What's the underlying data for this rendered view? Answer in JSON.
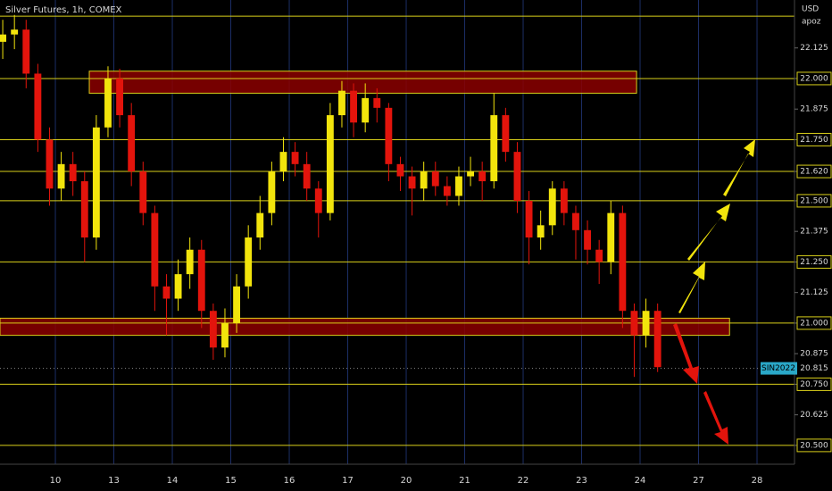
{
  "chart_data": {
    "type": "candlestick",
    "title": "Silver Futures, 1h, COMEX",
    "currency": "USD",
    "author": "apoz",
    "symbol": "SIN2022",
    "last_price": 20.815,
    "last_price_label": "20.815",
    "up_color": "#f2e40c",
    "down_color": "#e3140c",
    "level_color": "#d9cf1a",
    "zone_color": "#8b0000",
    "xlim": [
      -0.947,
      12.641
    ],
    "xticks": [
      {
        "value": 0,
        "label": "10"
      },
      {
        "value": 1,
        "label": "13"
      },
      {
        "value": 2,
        "label": "14"
      },
      {
        "value": 3,
        "label": "15"
      },
      {
        "value": 4,
        "label": "16"
      },
      {
        "value": 5,
        "label": "17"
      },
      {
        "value": 6,
        "label": "20"
      },
      {
        "value": 7,
        "label": "21"
      },
      {
        "value": 8,
        "label": "22"
      },
      {
        "value": 9,
        "label": "23"
      },
      {
        "value": 10,
        "label": "24"
      },
      {
        "value": 11,
        "label": "27"
      },
      {
        "value": 12,
        "label": "28"
      }
    ],
    "ylim": [
      20.423,
      22.321
    ],
    "yticks": [
      22.125,
      {
        "value": 22,
        "label": "22.000"
      },
      21.875,
      {
        "value": 21.75,
        "label": "21.750"
      },
      {
        "value": 21.62,
        "label": "21.620"
      },
      {
        "value": 21.5,
        "label": "21.500"
      },
      21.375,
      {
        "value": 21.25,
        "label": "21.250"
      },
      21.125,
      {
        "value": 21,
        "label": "21.000"
      },
      20.875,
      {
        "value": 20.75,
        "label": "20.750"
      },
      20.625,
      {
        "value": 20.5,
        "label": "20.500"
      }
    ],
    "levels": [
      22.255,
      22,
      21.75,
      21.62,
      21.5,
      21.25,
      21,
      20.75,
      20.5
    ],
    "zones": [
      {
        "x": [
          0.58,
          9.94
        ],
        "y": [
          21.94,
          22.03
        ]
      },
      {
        "x": [
          -0.947,
          11.53
        ],
        "y": [
          20.95,
          21.02
        ]
      }
    ],
    "x": [
      -0.9,
      -0.7,
      -0.5,
      -0.3,
      -0.1,
      0.1,
      0.3,
      0.5,
      0.7,
      0.9,
      1.1,
      1.3,
      1.5,
      1.7,
      1.9,
      2.1,
      2.3,
      2.5,
      2.7,
      2.9,
      3.1,
      3.3,
      3.5,
      3.7,
      3.9,
      4.1,
      4.3,
      4.5,
      4.7,
      4.9,
      5.1,
      5.3,
      5.5,
      5.7,
      5.9,
      6.1,
      6.3,
      6.5,
      6.7,
      6.9,
      7.1,
      7.3,
      7.5,
      7.7,
      7.9,
      8.1,
      8.3,
      8.5,
      8.7,
      8.9,
      9.1,
      9.3,
      9.5,
      9.7,
      9.9,
      10.1,
      10.3
    ],
    "open": [
      22.15,
      22.18,
      22.2,
      22.02,
      21.75,
      21.55,
      21.65,
      21.58,
      21.35,
      21.8,
      22.0,
      21.85,
      21.62,
      21.45,
      21.15,
      21.1,
      21.2,
      21.3,
      21.05,
      20.9,
      21.0,
      21.15,
      21.35,
      21.45,
      21.62,
      21.7,
      21.65,
      21.55,
      21.45,
      21.85,
      21.95,
      21.82,
      21.92,
      21.88,
      21.65,
      21.6,
      21.55,
      21.62,
      21.56,
      21.52,
      21.6,
      21.62,
      21.58,
      21.85,
      21.7,
      21.5,
      21.35,
      21.4,
      21.55,
      21.45,
      21.38,
      21.3,
      21.25,
      21.45,
      21.05,
      20.95,
      21.05
    ],
    "high": [
      22.24,
      22.26,
      22.24,
      22.06,
      21.8,
      21.7,
      21.7,
      21.62,
      21.85,
      22.05,
      22.04,
      21.9,
      21.66,
      21.48,
      21.2,
      21.26,
      21.35,
      21.34,
      21.08,
      21.06,
      21.2,
      21.4,
      21.52,
      21.66,
      21.76,
      21.74,
      21.7,
      21.58,
      21.9,
      21.99,
      21.98,
      21.98,
      21.96,
      21.9,
      21.68,
      21.64,
      21.66,
      21.66,
      21.6,
      21.64,
      21.68,
      21.66,
      21.94,
      21.88,
      21.74,
      21.54,
      21.46,
      21.58,
      21.58,
      21.48,
      21.42,
      21.34,
      21.5,
      21.48,
      21.08,
      21.1,
      21.08
    ],
    "low": [
      22.08,
      22.12,
      21.96,
      21.7,
      21.48,
      21.5,
      21.52,
      21.25,
      21.3,
      21.76,
      21.8,
      21.56,
      21.4,
      21.05,
      20.95,
      21.05,
      21.14,
      20.98,
      20.85,
      20.86,
      20.96,
      21.1,
      21.3,
      21.4,
      21.58,
      21.6,
      21.5,
      21.35,
      21.42,
      21.8,
      21.76,
      21.78,
      21.82,
      21.58,
      21.54,
      21.44,
      21.5,
      21.52,
      21.48,
      21.48,
      21.56,
      21.5,
      21.55,
      21.66,
      21.45,
      21.24,
      21.3,
      21.36,
      21.4,
      21.26,
      21.24,
      21.16,
      21.2,
      20.98,
      20.78,
      20.9,
      20.8
    ],
    "close": [
      22.18,
      22.2,
      22.02,
      21.75,
      21.55,
      21.65,
      21.58,
      21.35,
      21.8,
      22.0,
      21.85,
      21.62,
      21.45,
      21.15,
      21.1,
      21.2,
      21.3,
      21.05,
      20.9,
      21.0,
      21.15,
      21.35,
      21.45,
      21.62,
      21.7,
      21.65,
      21.55,
      21.45,
      21.85,
      21.95,
      21.82,
      21.92,
      21.88,
      21.65,
      21.6,
      21.55,
      21.62,
      21.56,
      21.52,
      21.6,
      21.62,
      21.58,
      21.85,
      21.7,
      21.5,
      21.35,
      21.4,
      21.55,
      21.45,
      21.38,
      21.3,
      21.25,
      21.45,
      21.05,
      20.95,
      21.05,
      20.82
    ]
  }
}
